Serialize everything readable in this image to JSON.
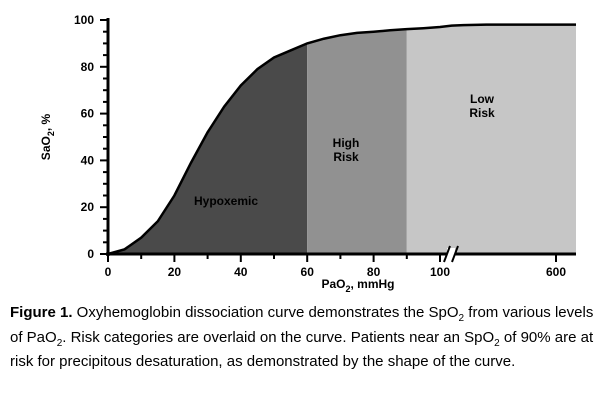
{
  "chart_data": {
    "type": "area",
    "title": "",
    "xlabel_main": "PaO",
    "xlabel_sub": "2",
    "xlabel_unit": ", mmHg",
    "ylabel_main": "SaO",
    "ylabel_sub": "2",
    "ylabel_unit": ", %",
    "ylim": [
      0,
      100
    ],
    "xlim": [
      0,
      600
    ],
    "x_axis_break": "between 100 and 600",
    "x_ticks": [
      "0",
      "20",
      "40",
      "60",
      "80",
      "100",
      "600"
    ],
    "y_ticks": [
      "0",
      "20",
      "40",
      "60",
      "80",
      "100"
    ],
    "series": [
      {
        "x": [
          0,
          5,
          10,
          15,
          20,
          25,
          30,
          35,
          40,
          45,
          50,
          55,
          60,
          65,
          70,
          75,
          80,
          85,
          90,
          95,
          100,
          150,
          200,
          300,
          400,
          500,
          600
        ],
        "values": [
          0,
          2,
          7,
          14,
          25,
          39,
          52,
          63,
          72,
          79,
          84,
          87,
          90,
          92,
          93.5,
          94.5,
          95,
          95.6,
          96.1,
          96.5,
          97,
          97.6,
          97.8,
          98,
          98,
          98,
          98
        ]
      }
    ],
    "regions": [
      {
        "label": "Hypoxemic",
        "x_range": [
          0,
          60
        ],
        "color": "#4a4a4a"
      },
      {
        "label_lines": [
          "High",
          "Risk"
        ],
        "x_range": [
          60,
          90
        ],
        "color": "#919191"
      },
      {
        "label_lines": [
          "Low",
          "Risk"
        ],
        "x_range": [
          90,
          600
        ],
        "color": "#c6c6c6"
      }
    ]
  },
  "caption": {
    "label": "Figure 1.",
    "segments": [
      {
        "t": " Oxyhemoglobin dissociation curve demonstrates the SpO"
      },
      {
        "sub": "2"
      },
      {
        "t": " from various levels of PaO"
      },
      {
        "sub": "2"
      },
      {
        "t": ". Risk categories are overlaid on the curve. Patients near an SpO"
      },
      {
        "sub": "2"
      },
      {
        "t": " of 90% are at risk for precipitous desaturation, as demonstrated by the shape of the curve."
      }
    ]
  }
}
